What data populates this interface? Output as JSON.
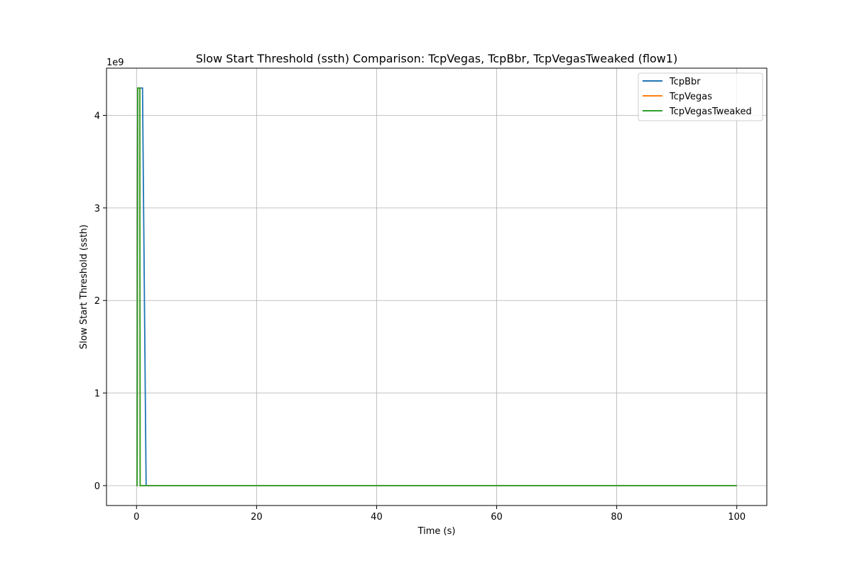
{
  "chart_data": {
    "type": "line",
    "title": "Slow Start Threshold (ssth) Comparison: TcpVegas, TcpBbr, TcpVegasTweaked (flow1)",
    "xlabel": "Time (s)",
    "ylabel": "Slow Start Threshold (ssth)",
    "y_offset_label": "1e9",
    "xlim": [
      -5,
      105
    ],
    "ylim": [
      -0.215,
      4.51
    ],
    "y_scale_factor": 1000000000,
    "x_ticks": [
      0,
      20,
      40,
      60,
      80,
      100
    ],
    "x_tick_labels": [
      "0",
      "20",
      "40",
      "60",
      "80",
      "100"
    ],
    "y_ticks": [
      0,
      1,
      2,
      3,
      4
    ],
    "y_tick_labels": [
      "0",
      "1",
      "2",
      "3",
      "4"
    ],
    "grid": true,
    "legend_position": "top-right",
    "series": [
      {
        "name": "TcpBbr",
        "color": "#1f77b4",
        "x": [
          0,
          0.1,
          0.2,
          0.8,
          1.0,
          1.6,
          100
        ],
        "y": [
          0,
          0,
          4.295,
          4.295,
          4.295,
          0,
          0
        ]
      },
      {
        "name": "TcpVegas",
        "color": "#ff7f0e",
        "x": [
          0,
          0.1,
          0.2,
          0.55,
          0.6,
          100
        ],
        "y": [
          0,
          0,
          4.295,
          4.295,
          0,
          0
        ]
      },
      {
        "name": "TcpVegasTweaked",
        "color": "#2ca02c",
        "x": [
          0,
          0.1,
          0.2,
          0.55,
          0.6,
          100
        ],
        "y": [
          0,
          0,
          4.295,
          4.295,
          0,
          0
        ]
      }
    ]
  }
}
